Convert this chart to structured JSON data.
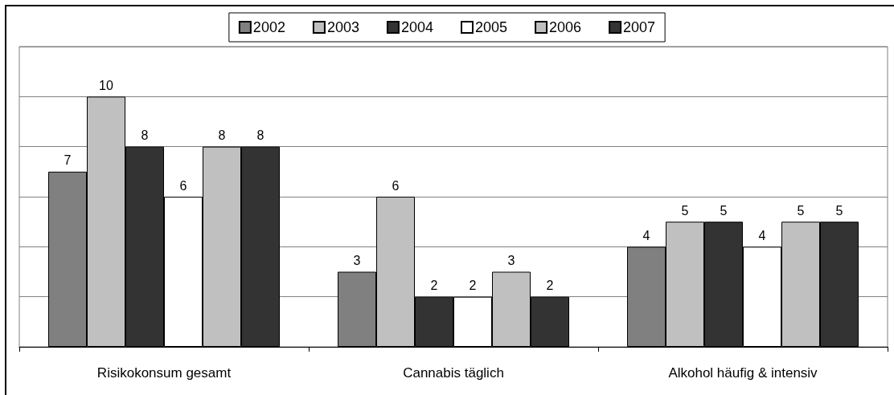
{
  "chart_data": {
    "type": "bar",
    "categories": [
      "Risikokonsum gesamt",
      "Cannabis täglich",
      "Alkohol häufig & intensiv"
    ],
    "series": [
      {
        "name": "2002",
        "color": "#808080",
        "values": [
          7,
          3,
          4
        ]
      },
      {
        "name": "2003",
        "color": "#c0c0c0",
        "values": [
          10,
          6,
          5
        ]
      },
      {
        "name": "2004",
        "color": "#333333",
        "values": [
          8,
          2,
          5
        ]
      },
      {
        "name": "2005",
        "color": "#ffffff",
        "values": [
          6,
          2,
          4
        ]
      },
      {
        "name": "2006",
        "color": "#c0c0c0",
        "values": [
          8,
          3,
          5
        ]
      },
      {
        "name": "2007",
        "color": "#333333",
        "values": [
          8,
          2,
          5
        ]
      }
    ],
    "ylim": [
      0,
      12
    ],
    "yticks": [
      {
        "value": 0,
        "label": null
      },
      {
        "value": 2,
        "label": null
      },
      {
        "value": 4,
        "label": null
      },
      {
        "value": 6,
        "label": null
      },
      {
        "value": 8,
        "label": null
      },
      {
        "value": 10,
        "label": null
      },
      {
        "value": 12,
        "label": null
      }
    ],
    "grid": "y",
    "legend": "top",
    "tick_labels": "x",
    "data_labels": true
  }
}
